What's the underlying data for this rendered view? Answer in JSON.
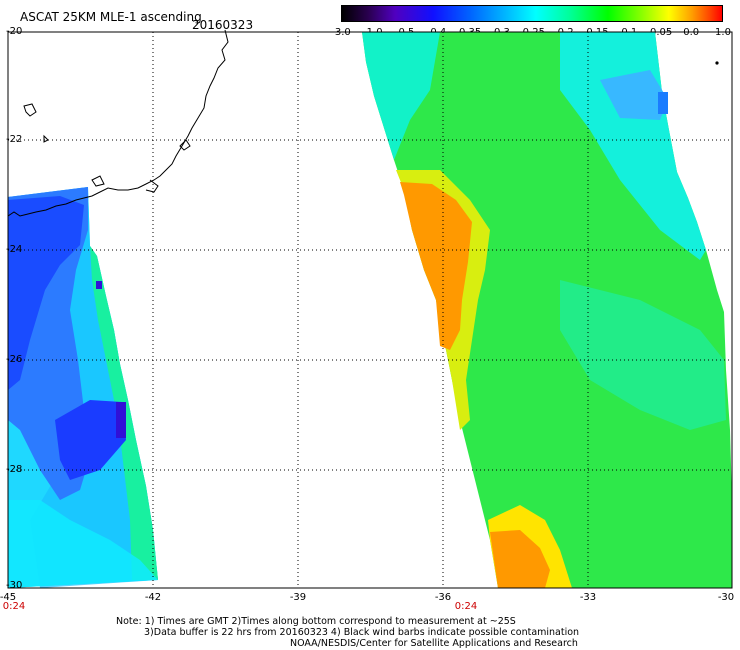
{
  "title": "ASCAT 25KM MLE-1 ascending",
  "date": "20160323",
  "colorbar": {
    "ticks": [
      "-3.0",
      "-1.0",
      "-0.5",
      "-0.4",
      "-0.35",
      "-0.3",
      "-0.25",
      "-0.2",
      "-0.15",
      "-0.1",
      "-0.05",
      "0.0",
      "1.0"
    ],
    "colors": [
      "#000000",
      "#5000c0",
      "#1010ff",
      "#00c8ff",
      "#00ffff",
      "#00ff00",
      "#ffff00",
      "#ff4000",
      "#ff0000"
    ]
  },
  "axes": {
    "lat_labels": [
      "-20",
      "-22",
      "-24",
      "-26",
      "-28",
      "-30"
    ],
    "lon_labels": [
      "-45",
      "-42",
      "-39",
      "-36",
      "-33",
      "-30"
    ],
    "time_labels": [
      "0:24",
      "0:24"
    ]
  },
  "notes": {
    "line1": "Note: 1) Times are GMT 2)Times along bottom correspond to measurement at ~25S",
    "line2": "3)Data buffer is 22 hrs from 20160323 4) Black wind barbs indicate possible contamination",
    "line3": "NOAA/NESDIS/Center for Satellite Applications and Research"
  },
  "swath_colors": {
    "west_deep": "#1a3cff",
    "west_mid": "#2c7bff",
    "west_light": "#18b6ff",
    "east_green": "#27ee44",
    "east_cyan": "#12f4ec",
    "east_orange": "#ff9900",
    "east_yellow": "#ffe400"
  }
}
